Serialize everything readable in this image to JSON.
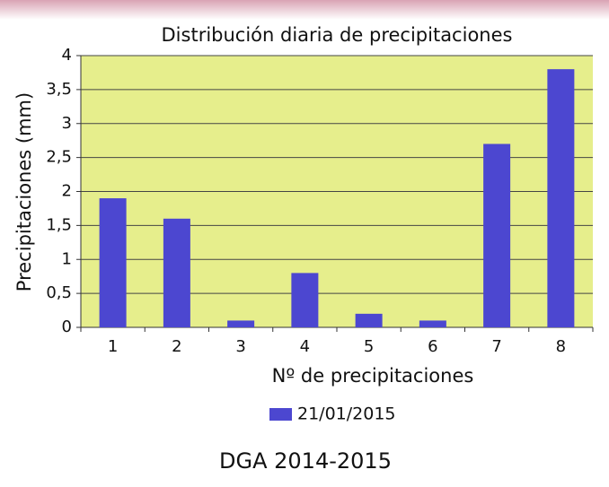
{
  "chart_data": {
    "type": "bar",
    "title": "Distribución diaria de precipitaciones",
    "xlabel": "Nº de precipitaciones",
    "ylabel": "Precipitaciones (mm)",
    "categories": [
      "1",
      "2",
      "3",
      "4",
      "5",
      "6",
      "7",
      "8"
    ],
    "series": [
      {
        "name": "21/01/2015",
        "color": "#4c47d0",
        "values": [
          1.9,
          1.6,
          0.1,
          0.8,
          0.2,
          0.1,
          2.7,
          3.8
        ]
      }
    ],
    "ylim": [
      0,
      4
    ],
    "yticks": [
      0,
      {
        "value": 0.5,
        "label": "0,5"
      },
      1,
      {
        "value": 1.5,
        "label": "1,5"
      },
      2,
      {
        "value": 2.5,
        "label": "2,5"
      },
      3,
      {
        "value": 3.5,
        "label": "3,5"
      },
      4
    ],
    "grid": true,
    "background": "#e6ee8c",
    "legend": "bottom",
    "source": "DGA 2014-2015"
  }
}
